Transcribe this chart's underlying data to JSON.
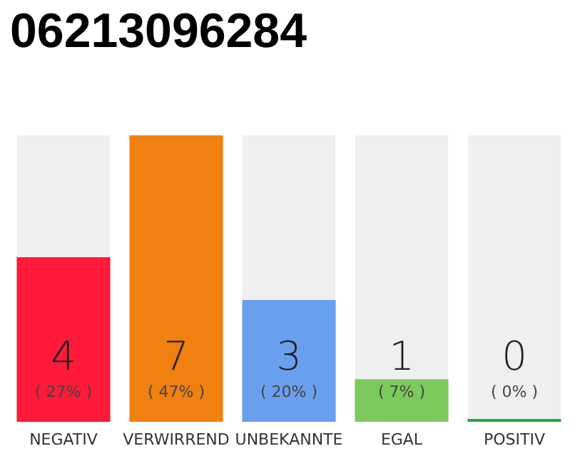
{
  "chart_data": {
    "type": "bar",
    "title": "06213096284",
    "categories": [
      "NEGATIV",
      "VERWIRREND",
      "UNBEKANNTE",
      "EGAL",
      "POSITIV"
    ],
    "values": [
      27,
      47,
      20,
      7,
      0
    ],
    "colors": [
      "#ff1a3a",
      "#f0800f",
      "#6a9fee",
      "#7cc95c",
      "#22a844"
    ],
    "value_labels": [
      "( 27% )",
      "( 47% )",
      "( 20% )",
      "( 7% )",
      "( 0% )"
    ],
    "annotations": [
      "4",
      "7",
      "3",
      "1",
      "0"
    ]
  }
}
